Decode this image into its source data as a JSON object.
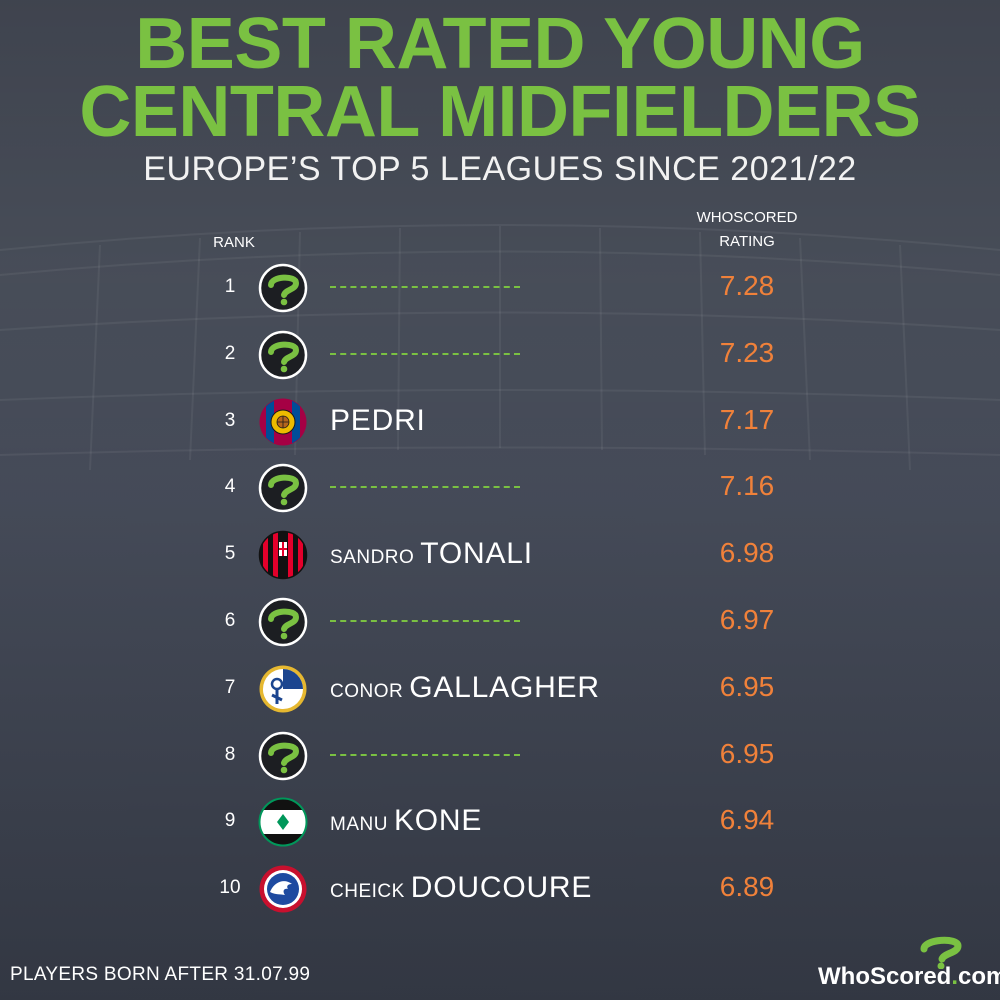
{
  "title": {
    "line1": "BEST RATED YOUNG",
    "line2": "CENTRAL MIDFIELDERS"
  },
  "subtitle": "EUROPE’S TOP 5 LEAGUES SINCE 2021/22",
  "columns": {
    "rank": "RANK",
    "rating_line1": "WHOSCORED",
    "rating_line2": "RATING"
  },
  "rows": [
    {
      "rank": "1",
      "first": "",
      "last": "",
      "rating": "7.28",
      "badge": "mystery-icon",
      "hidden": true
    },
    {
      "rank": "2",
      "first": "",
      "last": "",
      "rating": "7.23",
      "badge": "mystery-icon",
      "hidden": true
    },
    {
      "rank": "3",
      "first": "",
      "last": "PEDRI",
      "rating": "7.17",
      "badge": "barcelona-crest-icon",
      "hidden": false
    },
    {
      "rank": "4",
      "first": "",
      "last": "",
      "rating": "7.16",
      "badge": "mystery-icon",
      "hidden": true
    },
    {
      "rank": "5",
      "first": "SANDRO",
      "last": "TONALI",
      "rating": "6.98",
      "badge": "ac-milan-crest-icon",
      "hidden": false
    },
    {
      "rank": "6",
      "first": "",
      "last": "",
      "rating": "6.97",
      "badge": "mystery-icon",
      "hidden": true
    },
    {
      "rank": "7",
      "first": "CONOR",
      "last": "GALLAGHER",
      "rating": "6.95",
      "badge": "crystal-palace-crest-icon",
      "hidden": false
    },
    {
      "rank": "8",
      "first": "",
      "last": "",
      "rating": "6.95",
      "badge": "mystery-icon",
      "hidden": true
    },
    {
      "rank": "9",
      "first": "MANU",
      "last": "KONE",
      "rating": "6.94",
      "badge": "gladbach-crest-icon",
      "hidden": false
    },
    {
      "rank": "10",
      "first": "CHEICK",
      "last": "DOUCOURE",
      "rating": "6.89",
      "badge": "crystal-palace-eagle-crest-icon",
      "hidden": false
    }
  ],
  "footnote": "PLAYERS BORN AFTER 31.07.99",
  "logo": {
    "name": "WhoScored",
    "dot": ".",
    "suffix": "com"
  },
  "colors": {
    "title_green": "#7ac142",
    "rating_orange": "#f0813a",
    "background": "#3a404c"
  }
}
